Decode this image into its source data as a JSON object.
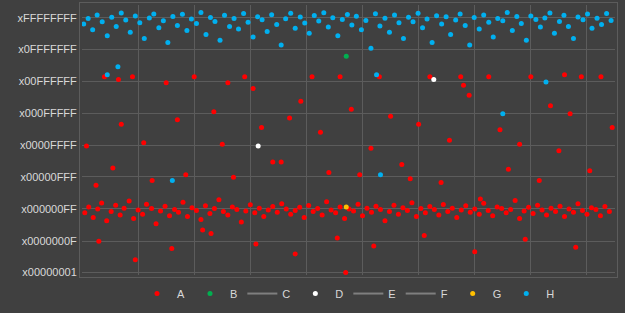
{
  "chart_data": {
    "type": "scatter",
    "log": "y",
    "grid": true,
    "legend": "bottom",
    "tick_labels": "y",
    "marker": "circle",
    "xlim": [
      0,
      950
    ],
    "xticks": [
      100,
      200,
      300,
      400,
      500,
      600,
      700,
      800,
      900
    ],
    "ylim": [
      0.8,
      13000000000
    ],
    "yticks": [
      {
        "value": 1,
        "label": "x00000001"
      },
      {
        "value": 15,
        "label": "x0000000F"
      },
      {
        "value": 255,
        "label": "x000000FF"
      },
      {
        "value": 4095,
        "label": "x00000FFF"
      },
      {
        "value": 65535,
        "label": "x0000FFFF"
      },
      {
        "value": 1048575,
        "label": "x000FFFFF"
      },
      {
        "value": 16777215,
        "label": "x00FFFFFF"
      },
      {
        "value": 268435455,
        "label": "x0FFFFFFF"
      },
      {
        "value": 4294967295,
        "label": "xFFFFFFFF"
      }
    ],
    "series": [
      {
        "name": "A",
        "color": "#ff0000",
        "marker": "circle",
        "x": [
          5,
          12,
          20,
          28,
          35,
          44,
          52,
          60,
          68,
          75,
          84,
          92,
          100,
          108,
          115,
          124,
          132,
          140,
          148,
          156,
          165,
          172,
          180,
          188,
          196,
          204,
          212,
          220,
          228,
          236,
          244,
          252,
          260,
          268,
          276,
          284,
          292,
          300,
          308,
          316,
          324,
          332,
          340,
          348,
          356,
          364,
          372,
          380,
          388,
          396,
          404,
          412,
          420,
          428,
          436,
          444,
          452,
          460,
          468,
          476,
          484,
          492,
          500,
          508,
          516,
          524,
          532,
          540,
          548,
          556,
          564,
          572,
          580,
          588,
          596,
          604,
          612,
          620,
          628,
          636,
          644,
          652,
          660,
          668,
          676,
          684,
          692,
          700,
          708,
          716,
          724,
          732,
          740,
          748,
          756,
          764,
          772,
          780,
          788,
          796,
          804,
          812,
          820,
          828,
          836,
          844,
          852,
          860,
          868,
          876,
          884,
          892,
          900,
          908,
          916,
          924,
          932,
          940,
          8,
          25,
          40,
          55,
          70,
          90,
          110,
          125,
          150,
          170,
          185,
          200,
          215,
          235,
          250,
          270,
          290,
          305,
          320,
          340,
          355,
          370,
          390,
          410,
          425,
          440,
          460,
          480,
          495,
          515,
          530,
          550,
          570,
          585,
          600,
          620,
          640,
          655,
          675,
          690,
          710,
          725,
          745,
          760,
          780,
          800,
          815,
          835,
          850,
          870,
          890,
          905,
          925,
          945,
          30,
          95,
          160,
          230,
          310,
          380,
          455,
          520,
          610,
          700,
          790,
          880,
          65,
          260,
          470,
          680,
          860
        ],
        "values": [
          180,
          300,
          120,
          250,
          420,
          90,
          200,
          350,
          150,
          270,
          500,
          110,
          230,
          160,
          380,
          260,
          70,
          210,
          320,
          140,
          240,
          190,
          450,
          130,
          280,
          220,
          100,
          330,
          170,
          260,
          560,
          200,
          150,
          300,
          240,
          80,
          210,
          360,
          180,
          270,
          130,
          230,
          310,
          190,
          400,
          250,
          160,
          220,
          290,
          120,
          340,
          200,
          260,
          150,
          470,
          230,
          180,
          300,
          110,
          250,
          210,
          380,
          140,
          270,
          190,
          320,
          240,
          90,
          200,
          350,
          160,
          280,
          220,
          430,
          130,
          260,
          180,
          310,
          240,
          150,
          370,
          200,
          270,
          120,
          230,
          330,
          190,
          250,
          160,
          410,
          220,
          140,
          300,
          260,
          180,
          240,
          520,
          110,
          210,
          290,
          170,
          350,
          230,
          150,
          270,
          200,
          320,
          130,
          250,
          190,
          400,
          220,
          160,
          280,
          240,
          140,
          310,
          200,
          60000,
          2000,
          25000000,
          9000,
          400000,
          25000000,
          80000,
          3000,
          15000000,
          600000,
          5000,
          25000000,
          40,
          1200000,
          70000,
          4000,
          25000000,
          9000000,
          300000,
          15000,
          15000,
          700000,
          3000000,
          25000000,
          200000,
          6000,
          25000000,
          1500000,
          5000,
          50000,
          25000000,
          800000,
          12000,
          3500,
          400000,
          25000000,
          2500,
          100000,
          25000000,
          5000000,
          600,
          25000000,
          250000,
          8000,
          70000,
          25000000,
          3000,
          2000000,
          40000,
          1000000,
          25000000,
          7000,
          25000000,
          300000,
          15,
          3,
          8,
          30,
          12,
          5,
          20,
          10,
          25,
          6,
          18,
          9,
          20000000,
          15000000,
          1,
          12000000,
          30000000
        ]
      },
      {
        "name": "B",
        "color": "#00b050",
        "marker": "circle",
        "x": [
          471
        ],
        "values": [
          150000000
        ]
      },
      {
        "name": "C",
        "color": "#7f7f7f",
        "marker": "line",
        "x": [],
        "values": []
      },
      {
        "name": "D",
        "color": "#ffffff",
        "marker": "circle",
        "x": [
          314,
          627
        ],
        "values": [
          60000,
          20000000
        ]
      },
      {
        "name": "E",
        "color": "#7f7f7f",
        "marker": "line",
        "x": [],
        "values": []
      },
      {
        "name": "F",
        "color": "#7f7f7f",
        "marker": "line",
        "x": [],
        "values": []
      },
      {
        "name": "G",
        "color": "#ffc000",
        "marker": "circle",
        "x": [
          471
        ],
        "values": [
          300
        ]
      },
      {
        "name": "H",
        "color": "#00b0f0",
        "marker": "circle",
        "x": [
          3,
          11,
          19,
          27,
          36,
          45,
          53,
          61,
          70,
          78,
          86,
          95,
          103,
          111,
          120,
          128,
          137,
          145,
          153,
          162,
          170,
          179,
          187,
          195,
          204,
          212,
          221,
          229,
          237,
          246,
          254,
          263,
          271,
          279,
          288,
          296,
          305,
          313,
          321,
          330,
          338,
          347,
          355,
          363,
          372,
          380,
          389,
          397,
          405,
          414,
          422,
          431,
          439,
          447,
          456,
          464,
          473,
          481,
          489,
          498,
          506,
          515,
          523,
          531,
          540,
          548,
          557,
          565,
          573,
          582,
          590,
          599,
          607,
          615,
          624,
          632,
          641,
          649,
          657,
          666,
          674,
          683,
          691,
          699,
          708,
          716,
          725,
          733,
          741,
          750,
          758,
          767,
          775,
          783,
          792,
          800,
          809,
          817,
          825,
          834,
          842,
          851,
          859,
          867,
          876,
          884,
          893,
          901,
          909,
          918,
          926,
          935,
          943,
          45,
          64,
          525,
          750,
          532,
          161,
          827
        ],
        "values": [
          2500000000,
          4000000000,
          1500000000,
          5500000000,
          3000000000,
          900000000,
          4500000000,
          2000000000,
          6500000000,
          3500000000,
          1200000000,
          5000000000,
          2800000000,
          700000000,
          4200000000,
          6000000000,
          1800000000,
          3300000000,
          500000000,
          4800000000,
          2200000000,
          5800000000,
          1400000000,
          3800000000,
          2600000000,
          6800000000,
          1000000000,
          4400000000,
          3100000000,
          600000000,
          5300000000,
          2000000000,
          4000000000,
          1600000000,
          6200000000,
          2900000000,
          800000000,
          4700000000,
          3600000000,
          1300000000,
          5600000000,
          2400000000,
          400000000,
          3900000000,
          6400000000,
          1700000000,
          4600000000,
          2700000000,
          1100000000,
          5200000000,
          3200000000,
          6600000000,
          1900000000,
          4300000000,
          900000000,
          3700000000,
          5700000000,
          2300000000,
          4900000000,
          1500000000,
          3400000000,
          300000000,
          6100000000,
          2100000000,
          4100000000,
          1200000000,
          5400000000,
          2800000000,
          700000000,
          4500000000,
          3000000000,
          6300000000,
          1800000000,
          3800000000,
          500000000,
          5100000000,
          2500000000,
          4700000000,
          1000000000,
          3500000000,
          6000000000,
          2200000000,
          400000000,
          4400000000,
          1600000000,
          5500000000,
          2900000000,
          800000000,
          4000000000,
          3300000000,
          6700000000,
          1400000000,
          4800000000,
          2600000000,
          600000000,
          5000000000,
          3700000000,
          1900000000,
          4200000000,
          6500000000,
          1100000000,
          3100000000,
          5300000000,
          2000000000,
          700000000,
          4600000000,
          3600000000,
          5900000000,
          1700000000,
          4100000000,
          2400000000,
          6200000000,
          3400000000,
          30000000,
          60000000,
          30000000,
          1000000,
          5000,
          3000,
          16000000
        ]
      }
    ]
  }
}
